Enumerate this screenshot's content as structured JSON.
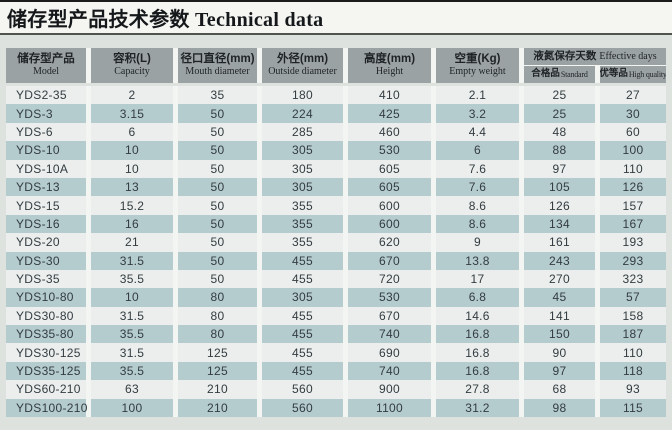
{
  "title": "储存型产品技术参数 Technical data",
  "colors": {
    "page_background": "#dde2de",
    "title_band": "#f5f6f2",
    "header_cell": "#9ba2a4",
    "row_light": "#ebeeec",
    "row_teal": "#b5cccf",
    "column_gap": "#f3f5f2",
    "text": "#333c41"
  },
  "table": {
    "headers": [
      {
        "zh": "储存型产品",
        "en": "Model"
      },
      {
        "zh": "容积(L)",
        "en": "Capacity"
      },
      {
        "zh": "径口直径(mm)",
        "en": "Mouth diameter"
      },
      {
        "zh": "外径(mm)",
        "en": "Outside diameter"
      },
      {
        "zh": "高度(mm)",
        "en": "Height"
      },
      {
        "zh": "空重(Kg)",
        "en": "Empty weight"
      }
    ],
    "effective_days": {
      "zh": "液氮保存天数",
      "en": "Effective days",
      "sub": [
        {
          "zh": "合格品",
          "en": "Standard"
        },
        {
          "zh": "优等品",
          "en": "High quality"
        }
      ]
    },
    "rows": [
      [
        "YDS2-35",
        "2",
        "35",
        "180",
        "410",
        "2.1",
        "25",
        "27"
      ],
      [
        "YDS-3",
        "3.15",
        "50",
        "224",
        "425",
        "3.2",
        "25",
        "30"
      ],
      [
        "YDS-6",
        "6",
        "50",
        "285",
        "460",
        "4.4",
        "48",
        "60"
      ],
      [
        "YDS-10",
        "10",
        "50",
        "305",
        "530",
        "6",
        "88",
        "100"
      ],
      [
        "YDS-10A",
        "10",
        "50",
        "305",
        "605",
        "7.6",
        "97",
        "110"
      ],
      [
        "YDS-13",
        "13",
        "50",
        "305",
        "605",
        "7.6",
        "105",
        "126"
      ],
      [
        "YDS-15",
        "15.2",
        "50",
        "355",
        "600",
        "8.6",
        "126",
        "157"
      ],
      [
        "YDS-16",
        "16",
        "50",
        "355",
        "600",
        "8.6",
        "134",
        "167"
      ],
      [
        "YDS-20",
        "21",
        "50",
        "355",
        "620",
        "9",
        "161",
        "193"
      ],
      [
        "YDS-30",
        "31.5",
        "50",
        "455",
        "670",
        "13.8",
        "243",
        "293"
      ],
      [
        "YDS-35",
        "35.5",
        "50",
        "455",
        "720",
        "17",
        "270",
        "323"
      ],
      [
        "YDS10-80",
        "10",
        "80",
        "305",
        "530",
        "6.8",
        "45",
        "57"
      ],
      [
        "YDS30-80",
        "31.5",
        "80",
        "455",
        "670",
        "14.6",
        "141",
        "158"
      ],
      [
        "YDS35-80",
        "35.5",
        "80",
        "455",
        "740",
        "16.8",
        "150",
        "187"
      ],
      [
        "YDS30-125",
        "31.5",
        "125",
        "455",
        "690",
        "16.8",
        "90",
        "110"
      ],
      [
        "YDS35-125",
        "35.5",
        "125",
        "455",
        "740",
        "16.8",
        "97",
        "118"
      ],
      [
        "YDS60-210",
        "63",
        "210",
        "560",
        "900",
        "27.8",
        "68",
        "93"
      ],
      [
        "YDS100-210",
        "100",
        "210",
        "560",
        "1100",
        "31.2",
        "98",
        "115"
      ]
    ]
  }
}
